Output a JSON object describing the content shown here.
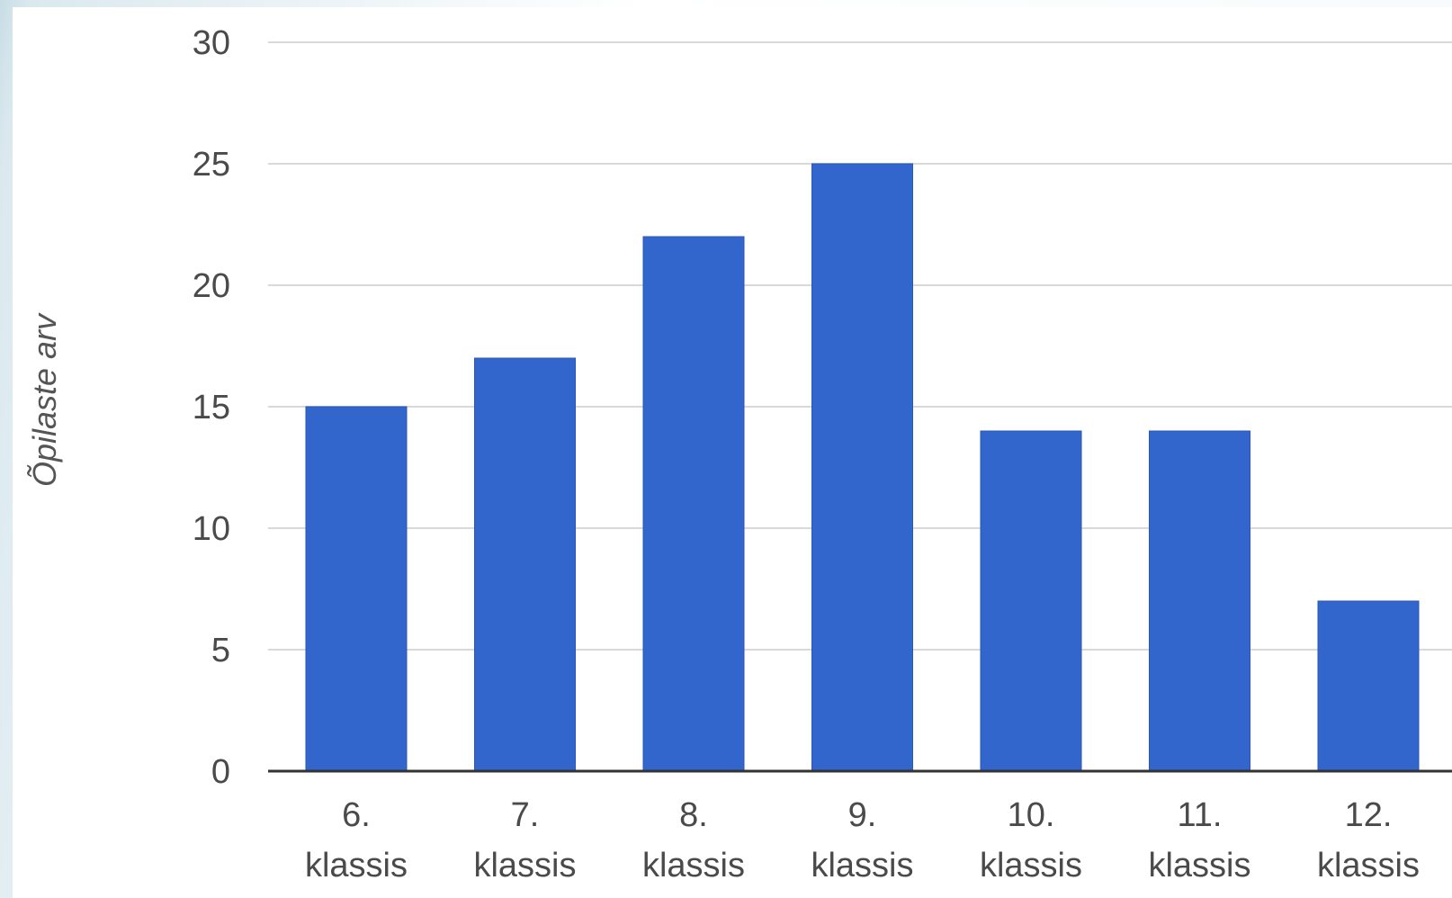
{
  "chart_data": {
    "type": "bar",
    "categories": [
      "6. klassis",
      "7. klassis",
      "8. klassis",
      "9. klassis",
      "10. klassis",
      "11. klassis",
      "12. klassis"
    ],
    "category_lines": [
      [
        "6.",
        "klassis"
      ],
      [
        "7.",
        "klassis"
      ],
      [
        "8.",
        "klassis"
      ],
      [
        "9.",
        "klassis"
      ],
      [
        "10.",
        "klassis"
      ],
      [
        "11.",
        "klassis"
      ],
      [
        "12.",
        "klassis"
      ]
    ],
    "values": [
      15,
      17,
      22,
      25,
      14,
      14,
      7
    ],
    "title": "",
    "xlabel": "",
    "ylabel": "Õpilaste arv",
    "ylim": [
      0,
      30
    ],
    "yticks": [
      "0",
      "5",
      "10",
      "15",
      "20",
      "25",
      "30"
    ],
    "grid": true,
    "legend": "none",
    "bar_color": "#3366cc",
    "gridline_color": "#d9d9d9",
    "axis_color": "#333333"
  }
}
